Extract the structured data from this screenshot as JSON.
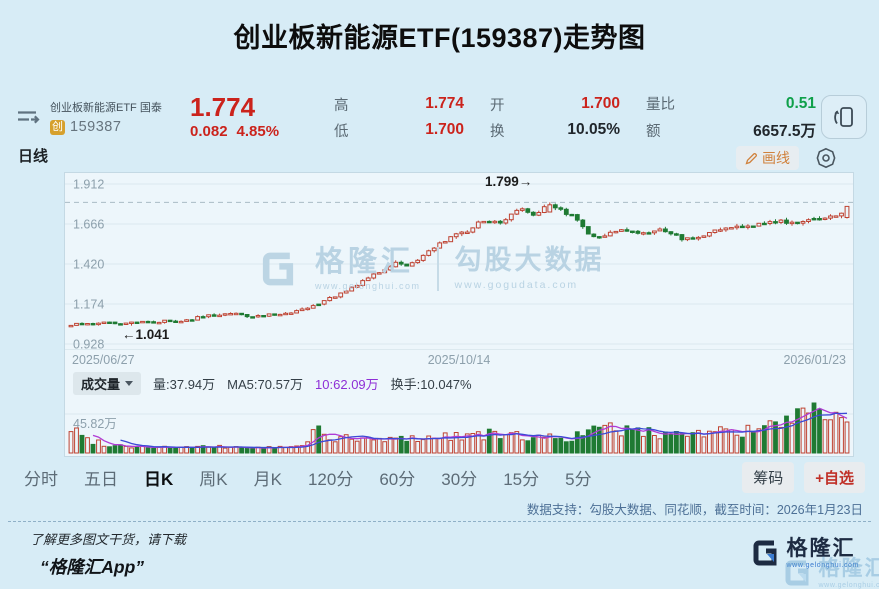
{
  "title": "创业板新能源ETF(159387)走势图",
  "quote": {
    "name": "创业板新能源ETF 国泰",
    "badge": "创",
    "code": "159387",
    "price": "1.774",
    "change": "0.082",
    "change_pct": "4.85%",
    "stats": [
      {
        "label": "高",
        "value": "1.774",
        "tone": "red"
      },
      {
        "label": "低",
        "value": "1.700",
        "tone": "red"
      },
      {
        "label": "开",
        "value": "1.700",
        "tone": "red"
      },
      {
        "label": "换",
        "value": "10.05%",
        "tone": "dark"
      },
      {
        "label": "量比",
        "value": "0.51",
        "tone": "green"
      },
      {
        "label": "额",
        "value": "6657.5万",
        "tone": "dark"
      }
    ]
  },
  "chart": {
    "period_label": "日线",
    "draw_button": "画线",
    "y_ticks": [
      "1.912",
      "1.666",
      "1.420",
      "1.174",
      "0.928"
    ],
    "x_ticks": [
      "2025/06/27",
      "2025/10/14",
      "2026/01/23"
    ],
    "annotations": {
      "low": "←1.041",
      "high": "1.799→"
    },
    "watermark": {
      "brand": "格隆汇",
      "brand_url": "www.gelonghui.com",
      "partner": "勾股大数据",
      "partner_url": "www.gogudata.com"
    }
  },
  "volume": {
    "selector": "成交量",
    "vol_label": "量:37.94万",
    "ma5_label": "MA5:70.57万",
    "ma10_label": "10:62.09万",
    "turnover_label": "换手:10.047%",
    "y_max_label": "45.82万"
  },
  "tabs": {
    "items": [
      "分时",
      "五日",
      "日K",
      "周K",
      "月K",
      "120分",
      "60分",
      "30分",
      "15分",
      "5分"
    ],
    "active_index": 2,
    "chips": [
      "筹码",
      "+自选"
    ]
  },
  "footer": {
    "data_note": "数据支持：勾股大数据、同花顺，截至时间：2026年1月23日",
    "promo_line1": "了解更多图文干货，请下载",
    "promo_line2": "“格隆汇App”",
    "brand": "格隆汇",
    "brand_url": "www.gelonghui.com"
  },
  "chart_data": {
    "type": "candlestick+volume",
    "title": "创业板新能源ETF(159387) 日线走势",
    "x_range": [
      "2025/06/27",
      "2026/01/23"
    ],
    "x_ticks": [
      "2025/06/27",
      "2025/10/14",
      "2026/01/23"
    ],
    "price_gridlines": [
      1.912,
      1.666,
      1.42,
      1.174,
      0.928
    ],
    "period_high": 1.799,
    "period_low": 1.041,
    "last_close": 1.774,
    "last_change": 0.082,
    "last_change_pct": 4.85,
    "day_open": 1.7,
    "day_high": 1.774,
    "day_low": 1.7,
    "volume_today": "37.94万",
    "volume_ma5": "70.57万",
    "volume_ma10": "62.09万",
    "turnover": "10.047%",
    "volume_axis_label": "45.82万",
    "candle_count": 142,
    "close_path": [
      [
        0.0,
        1.046
      ],
      [
        0.03,
        1.052
      ],
      [
        0.06,
        1.058
      ],
      [
        0.09,
        1.062
      ],
      [
        0.12,
        1.068
      ],
      [
        0.15,
        1.078
      ],
      [
        0.18,
        1.102
      ],
      [
        0.205,
        1.118
      ],
      [
        0.225,
        1.095
      ],
      [
        0.25,
        1.105
      ],
      [
        0.28,
        1.12
      ],
      [
        0.31,
        1.16
      ],
      [
        0.34,
        1.225
      ],
      [
        0.37,
        1.3
      ],
      [
        0.4,
        1.375
      ],
      [
        0.42,
        1.43
      ],
      [
        0.435,
        1.41
      ],
      [
        0.455,
        1.47
      ],
      [
        0.475,
        1.545
      ],
      [
        0.49,
        1.58
      ],
      [
        0.505,
        1.615
      ],
      [
        0.52,
        1.65
      ],
      [
        0.535,
        1.7
      ],
      [
        0.55,
        1.665
      ],
      [
        0.565,
        1.725
      ],
      [
        0.58,
        1.755
      ],
      [
        0.595,
        1.72
      ],
      [
        0.615,
        1.775
      ],
      [
        0.63,
        1.745
      ],
      [
        0.65,
        1.7
      ],
      [
        0.665,
        1.62
      ],
      [
        0.68,
        1.585
      ],
      [
        0.7,
        1.615
      ],
      [
        0.72,
        1.63
      ],
      [
        0.74,
        1.605
      ],
      [
        0.755,
        1.64
      ],
      [
        0.77,
        1.615
      ],
      [
        0.79,
        1.565
      ],
      [
        0.81,
        1.585
      ],
      [
        0.83,
        1.625
      ],
      [
        0.85,
        1.645
      ],
      [
        0.87,
        1.655
      ],
      [
        0.89,
        1.67
      ],
      [
        0.91,
        1.69
      ],
      [
        0.925,
        1.665
      ],
      [
        0.94,
        1.69
      ],
      [
        0.955,
        1.705
      ],
      [
        0.97,
        1.7
      ],
      [
        0.985,
        1.715
      ],
      [
        1.0,
        1.774
      ]
    ],
    "volume_path": [
      [
        0.0,
        0.5
      ],
      [
        0.02,
        0.28
      ],
      [
        0.05,
        0.16
      ],
      [
        0.1,
        0.12
      ],
      [
        0.15,
        0.11
      ],
      [
        0.2,
        0.12
      ],
      [
        0.25,
        0.1
      ],
      [
        0.3,
        0.13
      ],
      [
        0.315,
        0.52
      ],
      [
        0.33,
        0.34
      ],
      [
        0.36,
        0.27
      ],
      [
        0.4,
        0.26
      ],
      [
        0.44,
        0.3
      ],
      [
        0.48,
        0.33
      ],
      [
        0.52,
        0.38
      ],
      [
        0.56,
        0.35
      ],
      [
        0.6,
        0.32
      ],
      [
        0.64,
        0.3
      ],
      [
        0.67,
        0.42
      ],
      [
        0.7,
        0.5
      ],
      [
        0.72,
        0.44
      ],
      [
        0.75,
        0.38
      ],
      [
        0.78,
        0.44
      ],
      [
        0.81,
        0.4
      ],
      [
        0.84,
        0.44
      ],
      [
        0.87,
        0.42
      ],
      [
        0.895,
        0.5
      ],
      [
        0.92,
        0.62
      ],
      [
        0.94,
        0.72
      ],
      [
        0.955,
        1.0
      ],
      [
        0.97,
        0.82
      ],
      [
        0.985,
        0.66
      ],
      [
        1.0,
        0.62
      ]
    ],
    "up_color": "#bf4332",
    "down_color": "#1f7a33",
    "ma_colors": {
      "vol_ma5": "#b03bd6",
      "vol_ma10": "#3c49d6"
    },
    "legend": "红=上涨(空心) 绿=下跌(实心)"
  }
}
